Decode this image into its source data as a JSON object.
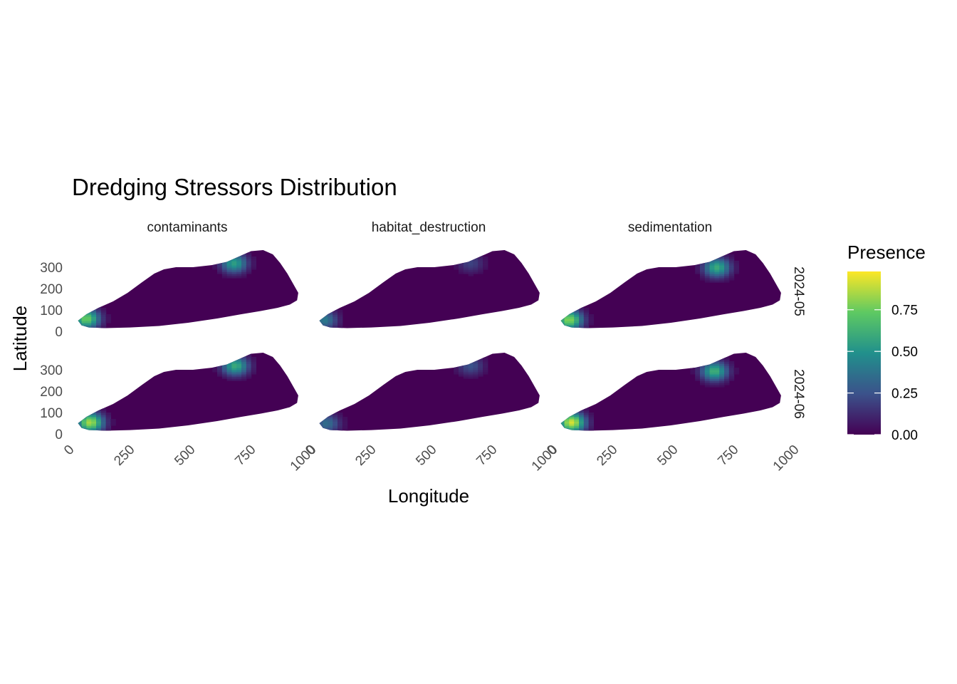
{
  "chart_data": {
    "type": "heatmap",
    "title": "Dredging Stressors Distribution",
    "xlabel": "Longitude",
    "ylabel": "Latitude",
    "xlim": [
      0,
      1000
    ],
    "ylim": [
      0,
      380
    ],
    "x_ticks": [
      "0",
      "250",
      "500",
      "750",
      "1000"
    ],
    "y_ticks": [
      "0",
      "100",
      "200",
      "300"
    ],
    "facet_columns": [
      "contaminants",
      "habitat_destruction",
      "sedimentation"
    ],
    "facet_rows": [
      "2024-05",
      "2024-06"
    ],
    "legend": {
      "title": "Presence",
      "position": "right",
      "labels": [
        "0.00",
        "0.25",
        "0.50",
        "0.75"
      ],
      "values": [
        0,
        0.25,
        0.5,
        0.75
      ],
      "range": [
        0,
        0.98
      ],
      "palette": [
        "#440154",
        "#3b528b",
        "#21908c",
        "#5ec962",
        "#fde725"
      ]
    },
    "hotspots": [
      {
        "facet": "contaminants",
        "month": "2024-05",
        "x": 60,
        "y": 60,
        "peak": 0.75
      },
      {
        "facet": "contaminants",
        "month": "2024-05",
        "x": 670,
        "y": 320,
        "peak": 0.55
      },
      {
        "facet": "habitat_destruction",
        "month": "2024-05",
        "x": 45,
        "y": 55,
        "peak": 0.4
      },
      {
        "facet": "habitat_destruction",
        "month": "2024-05",
        "x": 650,
        "y": 320,
        "peak": 0.2
      },
      {
        "facet": "sedimentation",
        "month": "2024-05",
        "x": 60,
        "y": 55,
        "peak": 0.8
      },
      {
        "facet": "sedimentation",
        "month": "2024-05",
        "x": 670,
        "y": 300,
        "peak": 0.6
      },
      {
        "facet": "contaminants",
        "month": "2024-06",
        "x": 75,
        "y": 55,
        "peak": 0.85
      },
      {
        "facet": "contaminants",
        "month": "2024-06",
        "x": 675,
        "y": 320,
        "peak": 0.6
      },
      {
        "facet": "habitat_destruction",
        "month": "2024-06",
        "x": 55,
        "y": 50,
        "peak": 0.35
      },
      {
        "facet": "habitat_destruction",
        "month": "2024-06",
        "x": 650,
        "y": 320,
        "peak": 0.25
      },
      {
        "facet": "sedimentation",
        "month": "2024-06",
        "x": 70,
        "y": 55,
        "peak": 0.92
      },
      {
        "facet": "sedimentation",
        "month": "2024-06",
        "x": 660,
        "y": 295,
        "peak": 0.62
      }
    ]
  }
}
